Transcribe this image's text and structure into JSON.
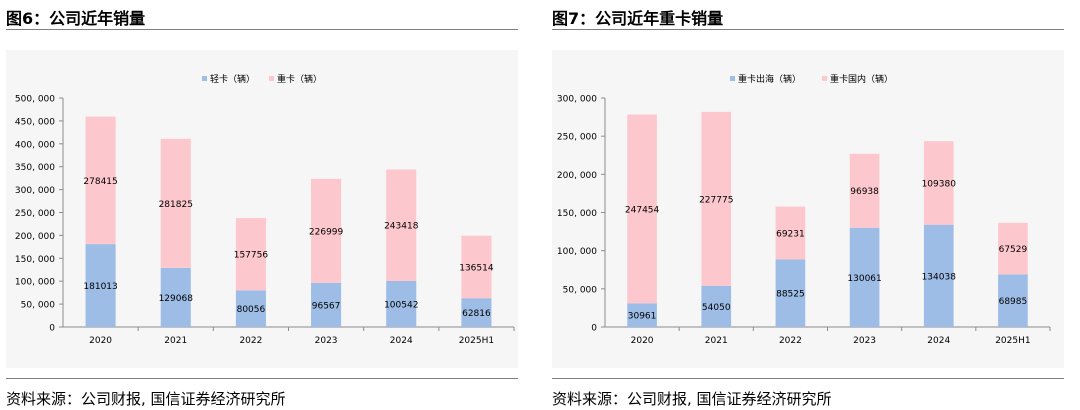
{
  "chart_data": [
    {
      "title": "图6：公司近年销量",
      "type": "bar",
      "stacked": true,
      "categories": [
        "2020",
        "2021",
        "2022",
        "2023",
        "2024",
        "2025H1"
      ],
      "series": [
        {
          "name": "轻卡（辆）",
          "color": "#9dbde6",
          "values": [
            181013,
            129068,
            80056,
            96567,
            100542,
            62816
          ]
        },
        {
          "name": "重卡（辆）",
          "color": "#fcc8cd",
          "values": [
            278415,
            281825,
            157756,
            226999,
            243418,
            136514
          ]
        }
      ],
      "yticks": [
        "0",
        "50, 000",
        "100, 000",
        "150, 000",
        "200, 000",
        "250, 000",
        "300, 000",
        "350, 000",
        "400, 000",
        "450, 000",
        "500, 000"
      ],
      "ylim": [
        0,
        500000
      ],
      "legend": "top-center",
      "source": "资料来源：公司财报, 国信证券经济研究所"
    },
    {
      "title": "图7：公司近年重卡销量",
      "type": "bar",
      "stacked": true,
      "categories": [
        "2020",
        "2021",
        "2022",
        "2023",
        "2024",
        "2025H1"
      ],
      "series": [
        {
          "name": "重卡出海（辆）",
          "color": "#9dbde6",
          "values": [
            30961,
            54050,
            88525,
            130061,
            134038,
            68985
          ]
        },
        {
          "name": "重卡国内（辆）",
          "color": "#fcc8cd",
          "values": [
            247454,
            227775,
            69231,
            96938,
            109380,
            67529
          ]
        }
      ],
      "yticks": [
        "0",
        "50, 000",
        "100, 000",
        "150, 000",
        "200, 000",
        "250, 000",
        "300, 000"
      ],
      "ylim": [
        0,
        300000
      ],
      "legend": "top-center",
      "source": "资料来源：公司财报, 国信证券经济研究所"
    }
  ]
}
